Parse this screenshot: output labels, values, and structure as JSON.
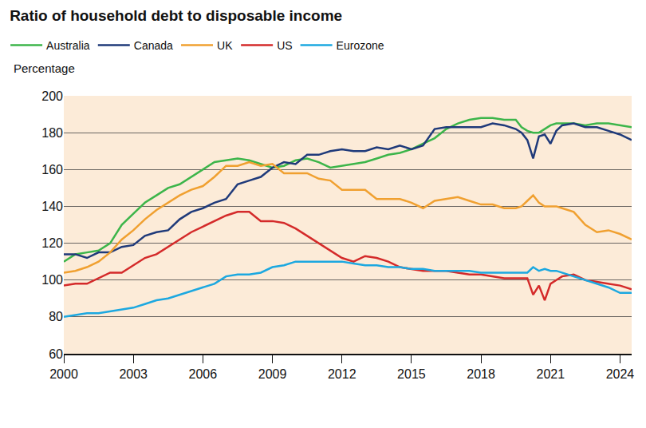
{
  "chart_data": {
    "type": "line",
    "title": "Ratio of household debt to disposable income",
    "y_label": "Percentage",
    "x": [
      2000,
      2000.5,
      2001,
      2001.5,
      2002,
      2002.5,
      2003,
      2003.5,
      2004,
      2004.5,
      2005,
      2005.5,
      2006,
      2006.5,
      2007,
      2007.5,
      2008,
      2008.5,
      2009,
      2009.5,
      2010,
      2010.5,
      2011,
      2011.5,
      2012,
      2012.5,
      2013,
      2013.5,
      2014,
      2014.5,
      2015,
      2015.5,
      2016,
      2016.5,
      2017,
      2017.5,
      2018,
      2018.5,
      2019,
      2019.5,
      2019.75,
      2020,
      2020.25,
      2020.5,
      2020.75,
      2021,
      2021.25,
      2021.5,
      2022,
      2022.5,
      2023,
      2023.5,
      2024,
      2024.5
    ],
    "series": [
      {
        "name": "Australia",
        "color": "#3cb54a",
        "values": [
          110,
          114,
          115,
          116,
          120,
          130,
          136,
          142,
          146,
          150,
          152,
          156,
          160,
          164,
          165,
          166,
          165,
          163,
          161,
          162,
          165,
          166,
          164,
          161,
          162,
          163,
          164,
          166,
          168,
          169,
          171,
          174,
          177,
          182,
          185,
          187,
          188,
          188,
          187,
          187,
          183,
          181,
          180,
          180,
          182,
          184,
          185,
          185,
          185,
          184,
          185,
          185,
          184,
          183
        ]
      },
      {
        "name": "Canada",
        "color": "#1f3a7a",
        "values": [
          114,
          114,
          112,
          115,
          115,
          118,
          119,
          124,
          126,
          127,
          133,
          137,
          139,
          142,
          144,
          152,
          154,
          156,
          161,
          164,
          163,
          168,
          168,
          170,
          171,
          170,
          170,
          172,
          171,
          173,
          171,
          173,
          182,
          183,
          183,
          183,
          183,
          185,
          184,
          182,
          180,
          176,
          166,
          178,
          179,
          174,
          181,
          184,
          185,
          183,
          183,
          181,
          179,
          176
        ]
      },
      {
        "name": "UK",
        "color": "#f0a030",
        "values": [
          104,
          105,
          107,
          110,
          115,
          122,
          127,
          133,
          138,
          142,
          146,
          149,
          151,
          156,
          162,
          162,
          164,
          162,
          163,
          158,
          158,
          158,
          155,
          154,
          149,
          149,
          149,
          144,
          144,
          144,
          142,
          139,
          143,
          144,
          145,
          143,
          141,
          141,
          139,
          139,
          140,
          143,
          146,
          142,
          140,
          140,
          140,
          139,
          137,
          130,
          126,
          127,
          125,
          122
        ]
      },
      {
        "name": "US",
        "color": "#d42a2a",
        "values": [
          97,
          98,
          98,
          101,
          104,
          104,
          108,
          112,
          114,
          118,
          122,
          126,
          129,
          132,
          135,
          137,
          137,
          132,
          132,
          131,
          128,
          124,
          120,
          116,
          112,
          110,
          113,
          112,
          110,
          107,
          106,
          105,
          105,
          105,
          104,
          103,
          103,
          102,
          101,
          101,
          101,
          101,
          92,
          97,
          89,
          98,
          100,
          102,
          103,
          100,
          99,
          98,
          97,
          95
        ]
      },
      {
        "name": "Eurozone",
        "color": "#1ca8e0",
        "values": [
          80,
          81,
          82,
          82,
          83,
          84,
          85,
          87,
          89,
          90,
          92,
          94,
          96,
          98,
          102,
          103,
          103,
          104,
          107,
          108,
          110,
          110,
          110,
          110,
          110,
          109,
          108,
          108,
          107,
          107,
          106,
          106,
          105,
          105,
          105,
          105,
          104,
          104,
          104,
          104,
          104,
          104,
          107,
          105,
          106,
          105,
          105,
          104,
          102,
          100,
          98,
          96,
          93,
          93
        ]
      }
    ],
    "xlim": [
      2000,
      2024.5
    ],
    "xticks": [
      2000,
      2003,
      2006,
      2009,
      2012,
      2015,
      2018,
      2021,
      2024
    ],
    "ylim": [
      60,
      200
    ],
    "yticks": [
      60,
      80,
      100,
      120,
      140,
      160,
      180,
      200
    ],
    "grid": true,
    "legend": "top left"
  }
}
